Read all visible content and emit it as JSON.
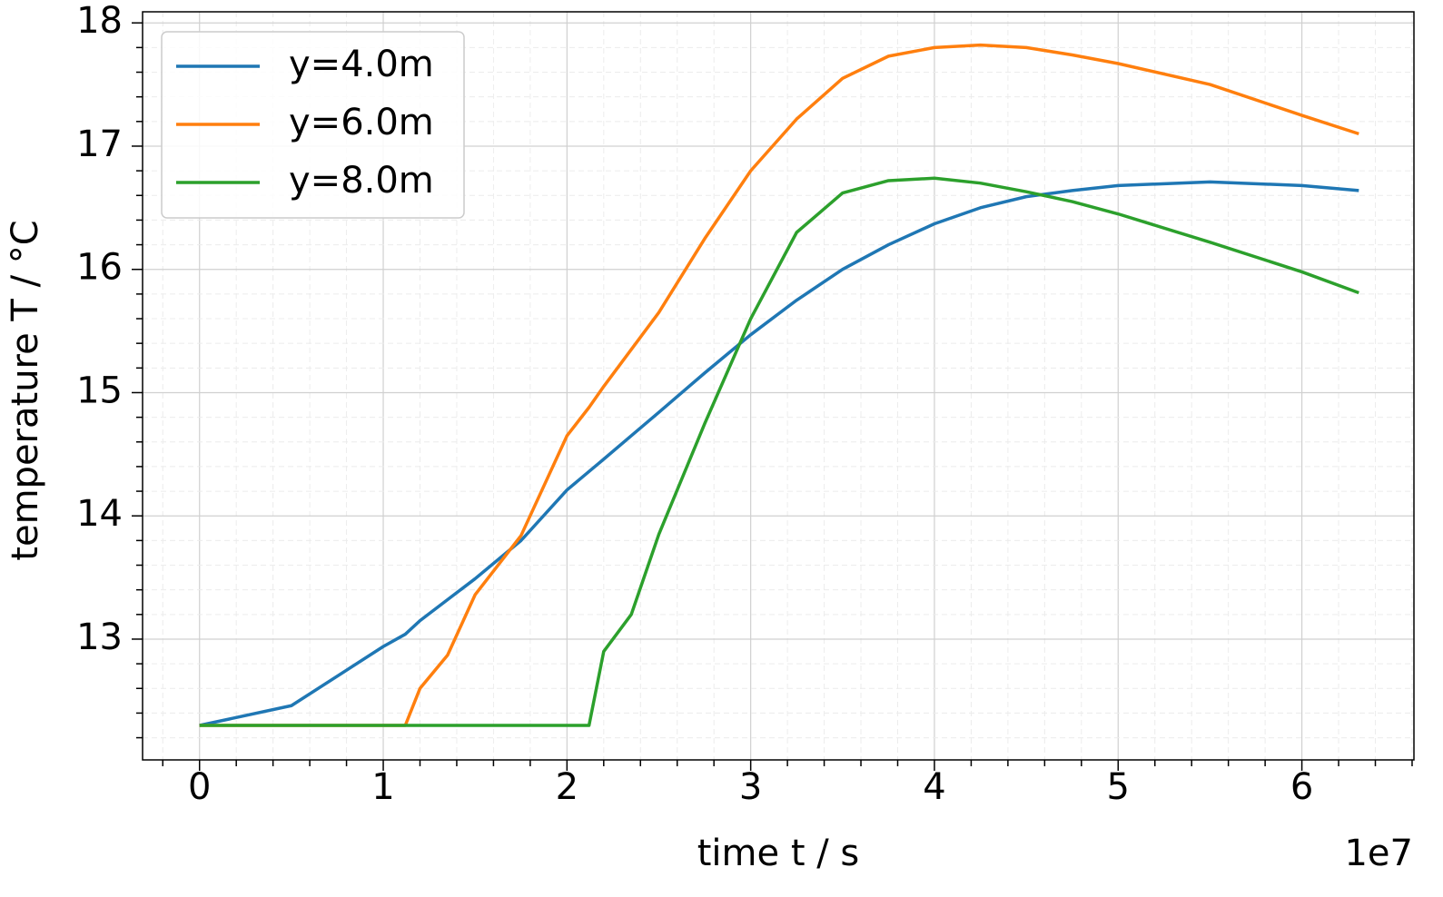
{
  "chart_data": {
    "type": "line",
    "xlabel": "time t / s",
    "ylabel": "temperature T / °C",
    "x_offset_label": "1e7",
    "x": [
      0,
      0.5,
      1,
      1.12,
      1.2,
      1.35,
      1.5,
      1.75,
      2,
      2.12,
      2.2,
      2.35,
      2.5,
      2.75,
      3,
      3.25,
      3.5,
      3.75,
      4,
      4.25,
      4.5,
      4.75,
      5,
      5.5,
      6,
      6.31
    ],
    "series": [
      {
        "name": "y=4.0m",
        "color": "#1f77b4",
        "values": [
          12.3,
          12.46,
          12.94,
          13.04,
          13.15,
          13.32,
          13.49,
          13.8,
          14.21,
          14.36,
          14.46,
          14.65,
          14.84,
          15.16,
          15.47,
          15.75,
          16.0,
          16.2,
          16.37,
          16.5,
          16.59,
          16.64,
          16.68,
          16.71,
          16.68,
          16.64
        ]
      },
      {
        "name": "y=6.0m",
        "color": "#ff7f0e",
        "values": [
          12.3,
          12.3,
          12.3,
          12.3,
          12.6,
          12.87,
          13.36,
          13.84,
          14.65,
          14.88,
          15.05,
          15.35,
          15.65,
          16.25,
          16.8,
          17.22,
          17.55,
          17.73,
          17.8,
          17.82,
          17.8,
          17.74,
          17.67,
          17.5,
          17.25,
          17.1
        ]
      },
      {
        "name": "y=8.0m",
        "color": "#2ca02c",
        "values": [
          12.3,
          12.3,
          12.3,
          12.3,
          12.3,
          12.3,
          12.3,
          12.3,
          12.3,
          12.3,
          12.9,
          13.2,
          13.85,
          14.75,
          15.6,
          16.3,
          16.62,
          16.72,
          16.74,
          16.7,
          16.63,
          16.55,
          16.45,
          16.22,
          15.98,
          15.81
        ]
      }
    ],
    "xlim": [
      -0.31,
      6.61
    ],
    "ylim": [
      12.02,
      18.09
    ],
    "xticks": [
      0,
      1,
      2,
      3,
      4,
      5,
      6
    ],
    "yticks": [
      13,
      14,
      15,
      16,
      17,
      18
    ],
    "minor_divisions": 5,
    "grid": true,
    "legend": "upper left"
  }
}
